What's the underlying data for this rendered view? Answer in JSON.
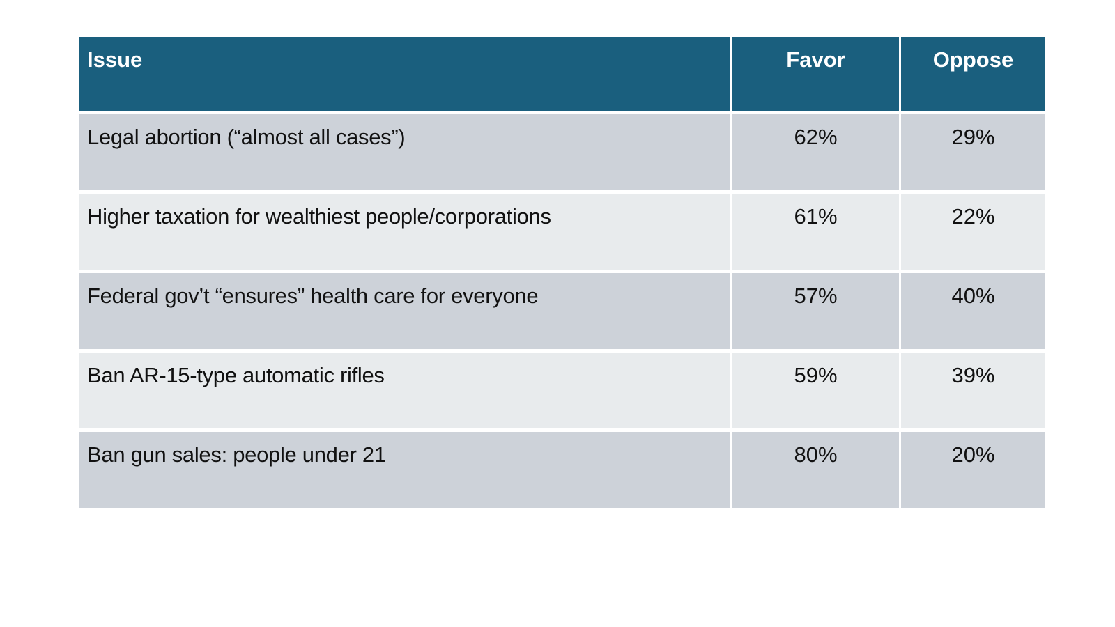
{
  "colors": {
    "header_bg": "#1A5F7E",
    "header_text": "#FFFFFF",
    "row_band_dark": "#CDD2D9",
    "row_band_light": "#E8EBED",
    "body_text": "#111111",
    "page_bg": "#FFFFFF"
  },
  "table": {
    "columns": [
      "Issue",
      "Favor",
      "Oppose"
    ],
    "rows": [
      {
        "issue": "Legal abortion (“almost all cases”)",
        "favor": "62%",
        "oppose": "29%"
      },
      {
        "issue": "Higher taxation for wealthiest people/corporations",
        "favor": "61%",
        "oppose": "22%"
      },
      {
        "issue": "Federal gov’t “ensures” health care for everyone",
        "favor": "57%",
        "oppose": "40%"
      },
      {
        "issue": "Ban AR-15-type automatic rifles",
        "favor": "59%",
        "oppose": "39%"
      },
      {
        "issue": "Ban gun sales: people under 21",
        "favor": "80%",
        "oppose": "20%"
      }
    ]
  },
  "chart_data": {
    "type": "table",
    "title": "",
    "columns": [
      "Issue",
      "Favor",
      "Oppose"
    ],
    "categories": [
      "Legal abortion (“almost all cases”)",
      "Higher taxation for wealthiest people/corporations",
      "Federal gov’t “ensures” health care for everyone",
      "Ban AR-15-type automatic rifles",
      "Ban gun sales: people under 21"
    ],
    "series": [
      {
        "name": "Favor",
        "values": [
          62,
          61,
          57,
          59,
          80
        ],
        "unit": "%"
      },
      {
        "name": "Oppose",
        "values": [
          29,
          22,
          40,
          39,
          20
        ],
        "unit": "%"
      }
    ],
    "layout": {
      "header_fill": "#1A5F7E",
      "banding": [
        "#CDD2D9",
        "#E8EBED"
      ],
      "value_alignment": "center",
      "issue_alignment": "left"
    }
  }
}
